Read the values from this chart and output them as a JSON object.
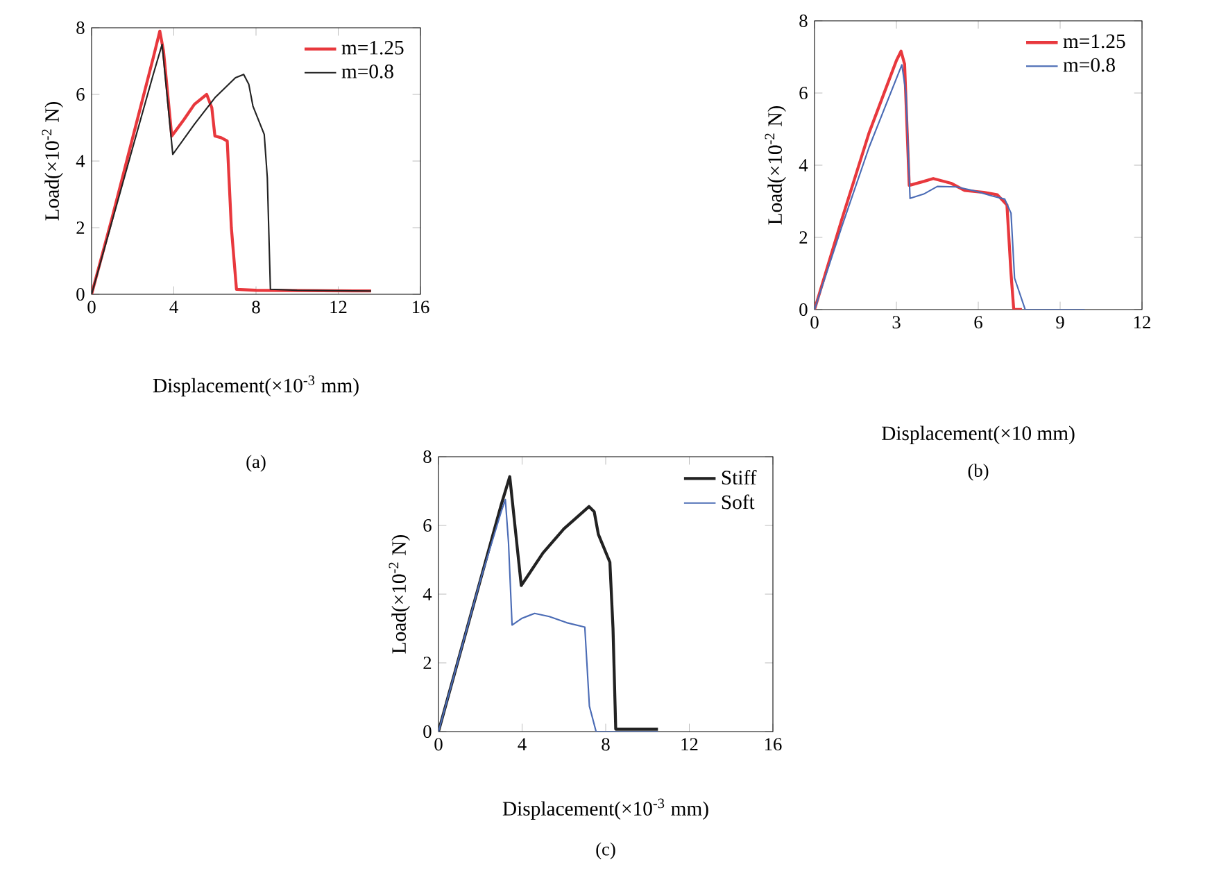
{
  "chart_data": [
    {
      "type": "line",
      "title": "(a)",
      "xlabel": "Displacement(×10$^{-3}$ mm)",
      "ylabel": "Load(×10$^{-2}$ N)",
      "xlim": [
        0,
        16
      ],
      "ylim": [
        0,
        8
      ],
      "xticks": [
        0,
        4,
        8,
        12,
        16
      ],
      "yticks": [
        0,
        2,
        4,
        6,
        8
      ],
      "legend": "top right",
      "grid": false,
      "series": [
        {
          "name": "m=1.25",
          "color": "#e8383d",
          "x": [
            0,
            1,
            2,
            3,
            3.32,
            3.5,
            3.9,
            4.5,
            5.0,
            5.6,
            5.85,
            6.0,
            6.3,
            6.6,
            6.8,
            7.05,
            8,
            13.6
          ],
          "values": [
            0,
            2.3,
            4.7,
            7.1,
            7.9,
            7.3,
            4.75,
            5.25,
            5.7,
            6.0,
            5.6,
            4.75,
            4.7,
            4.6,
            2.0,
            0.15,
            0.12,
            0.1
          ]
        },
        {
          "name": "m=0.8",
          "color": "#222222",
          "x": [
            0,
            1,
            2,
            3,
            3.43,
            3.95,
            5,
            6,
            7,
            7.4,
            7.65,
            7.85,
            8.4,
            8.55,
            8.7,
            10,
            13.6
          ],
          "values": [
            0,
            2.2,
            4.4,
            6.6,
            7.5,
            4.2,
            5.1,
            5.9,
            6.5,
            6.6,
            6.3,
            5.65,
            4.8,
            3.5,
            0.15,
            0.12,
            0.1
          ]
        }
      ]
    },
    {
      "type": "line",
      "title": "(b)",
      "xlabel": "Displacement(×10 mm)",
      "ylabel": "Load(×10$^{-2}$ N)",
      "xlim": [
        0,
        12
      ],
      "ylim": [
        0,
        8
      ],
      "xticks": [
        0,
        3,
        6,
        9,
        12
      ],
      "yticks": [
        0,
        2,
        4,
        6,
        8
      ],
      "legend": "top right",
      "grid": false,
      "series": [
        {
          "name": "m=1.25",
          "color": "#e8383d",
          "x": [
            0,
            1,
            2,
            3,
            3.17,
            3.3,
            3.47,
            4.0,
            4.35,
            5.0,
            5.5,
            6.2,
            6.7,
            7.05,
            7.2,
            7.3,
            7.6
          ],
          "values": [
            0,
            2.5,
            4.9,
            6.9,
            7.16,
            6.8,
            3.44,
            3.55,
            3.63,
            3.5,
            3.3,
            3.25,
            3.18,
            2.9,
            1.0,
            0,
            0
          ]
        },
        {
          "name": "m=0.8",
          "color": "#4a6bb5",
          "x": [
            0,
            1,
            2,
            3,
            3.2,
            3.35,
            3.5,
            4.0,
            4.5,
            5.2,
            5.87,
            6.5,
            6.97,
            7.2,
            7.33,
            7.72,
            9.9
          ],
          "values": [
            0,
            2.3,
            4.5,
            6.4,
            6.78,
            6.0,
            3.08,
            3.2,
            3.41,
            3.4,
            3.29,
            3.15,
            3.06,
            2.67,
            0.87,
            0,
            0
          ]
        }
      ]
    },
    {
      "type": "line",
      "title": "(c)",
      "xlabel": "Displacement(×10$^{-3}$ mm)",
      "ylabel": "Load(×10$^{-2}$ N)",
      "xlim": [
        0,
        16
      ],
      "ylim": [
        0,
        8
      ],
      "xticks": [
        0,
        4,
        8,
        12,
        16
      ],
      "yticks": [
        0,
        2,
        4,
        6,
        8
      ],
      "legend": "top right",
      "grid": false,
      "series": [
        {
          "name": "Stiff",
          "color": "#222222",
          "x": [
            0,
            1,
            2,
            3,
            3.41,
            3.96,
            5,
            6,
            7.2,
            7.45,
            7.65,
            8.2,
            8.35,
            8.48,
            10.5
          ],
          "values": [
            0,
            2.2,
            4.4,
            6.6,
            7.42,
            4.25,
            5.2,
            5.9,
            6.55,
            6.4,
            5.74,
            4.93,
            3.0,
            0.07,
            0.07
          ]
        },
        {
          "name": "Soft",
          "color": "#4a6bb5",
          "x": [
            0,
            1,
            2,
            3,
            3.2,
            3.35,
            3.52,
            4.0,
            4.6,
            5.3,
            6.13,
            7.0,
            7.1,
            7.22,
            7.54,
            10.5
          ],
          "values": [
            0,
            2.2,
            4.4,
            6.4,
            6.75,
            5.5,
            3.1,
            3.3,
            3.44,
            3.35,
            3.17,
            3.04,
            2.0,
            0.74,
            0,
            0
          ]
        }
      ]
    }
  ]
}
